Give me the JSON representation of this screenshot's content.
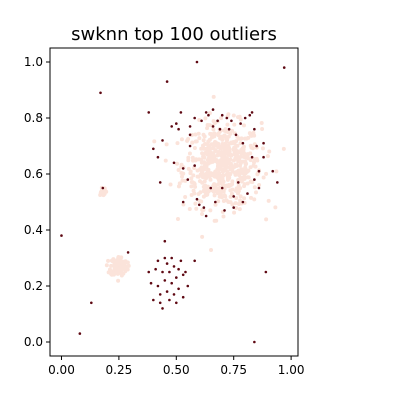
{
  "chart_data": {
    "type": "scatter",
    "title": "swknn top 100 outliers",
    "xlabel": "",
    "ylabel": "",
    "xlim": [
      -0.05,
      1.03
    ],
    "ylim": [
      -0.05,
      1.05
    ],
    "grid": false,
    "legend": "none",
    "x_ticks": [
      0.0,
      0.25,
      0.5,
      0.75,
      1.0
    ],
    "x_tick_labels": [
      "0.00",
      "0.25",
      "0.50",
      "0.75",
      "1.00"
    ],
    "y_ticks": [
      0.0,
      0.2,
      0.4,
      0.6,
      0.8,
      1.0
    ],
    "y_tick_labels": [
      "0.0",
      "0.2",
      "0.4",
      "0.6",
      "0.8",
      "1.0"
    ],
    "colors": {
      "inlier": "#fbe3da",
      "outlier": "#5e0812"
    },
    "inlier_clusters": [
      {
        "center": [
          0.7,
          0.63
        ],
        "spread": [
          0.085,
          0.075
        ],
        "count": 600
      },
      {
        "center": [
          0.25,
          0.27
        ],
        "spread": [
          0.018,
          0.018
        ],
        "count": 120
      },
      {
        "center": [
          0.18,
          0.54
        ],
        "spread": [
          0.008,
          0.008
        ],
        "count": 25
      }
    ],
    "series": [
      {
        "values": [
          [
            0.0,
            0.38
          ],
          [
            0.08,
            0.03
          ],
          [
            0.13,
            0.14
          ],
          [
            0.17,
            0.89
          ],
          [
            0.18,
            0.55
          ],
          [
            0.59,
            1.0
          ],
          [
            0.46,
            0.93
          ],
          [
            0.97,
            0.98
          ],
          [
            0.84,
            0.0
          ],
          [
            0.89,
            0.25
          ],
          [
            0.29,
            0.32
          ],
          [
            0.38,
            0.25
          ],
          [
            0.39,
            0.21
          ],
          [
            0.4,
            0.15
          ],
          [
            0.41,
            0.26
          ],
          [
            0.42,
            0.29
          ],
          [
            0.42,
            0.2
          ],
          [
            0.43,
            0.17
          ],
          [
            0.43,
            0.14
          ],
          [
            0.44,
            0.12
          ],
          [
            0.44,
            0.25
          ],
          [
            0.45,
            0.3
          ],
          [
            0.45,
            0.36
          ],
          [
            0.45,
            0.22
          ],
          [
            0.46,
            0.28
          ],
          [
            0.46,
            0.18
          ],
          [
            0.47,
            0.15
          ],
          [
            0.47,
            0.25
          ],
          [
            0.48,
            0.21
          ],
          [
            0.48,
            0.3
          ],
          [
            0.49,
            0.27
          ],
          [
            0.49,
            0.17
          ],
          [
            0.5,
            0.23
          ],
          [
            0.5,
            0.14
          ],
          [
            0.51,
            0.19
          ],
          [
            0.51,
            0.26
          ],
          [
            0.52,
            0.29
          ],
          [
            0.53,
            0.24
          ],
          [
            0.53,
            0.16
          ],
          [
            0.54,
            0.25
          ],
          [
            0.55,
            0.2
          ],
          [
            0.58,
            0.29
          ],
          [
            0.38,
            0.82
          ],
          [
            0.4,
            0.69
          ],
          [
            0.42,
            0.66
          ],
          [
            0.43,
            0.57
          ],
          [
            0.44,
            0.72
          ],
          [
            0.49,
            0.64
          ],
          [
            0.5,
            0.78
          ],
          [
            0.51,
            0.76
          ],
          [
            0.52,
            0.82
          ],
          [
            0.53,
            0.5
          ],
          [
            0.55,
            0.58
          ],
          [
            0.56,
            0.77
          ],
          [
            0.58,
            0.8
          ],
          [
            0.59,
            0.51
          ],
          [
            0.6,
            0.49
          ],
          [
            0.62,
            0.48
          ],
          [
            0.63,
            0.45
          ],
          [
            0.64,
            0.81
          ],
          [
            0.65,
            0.55
          ],
          [
            0.66,
            0.83
          ],
          [
            0.67,
            0.5
          ],
          [
            0.68,
            0.79
          ],
          [
            0.69,
            0.76
          ],
          [
            0.7,
            0.81
          ],
          [
            0.71,
            0.47
          ],
          [
            0.72,
            0.8
          ],
          [
            0.73,
            0.76
          ],
          [
            0.74,
            0.79
          ],
          [
            0.75,
            0.52
          ],
          [
            0.76,
            0.74
          ],
          [
            0.77,
            0.57
          ],
          [
            0.78,
            0.78
          ],
          [
            0.79,
            0.5
          ],
          [
            0.8,
            0.8
          ],
          [
            0.81,
            0.53
          ],
          [
            0.82,
            0.81
          ],
          [
            0.83,
            0.82
          ],
          [
            0.84,
            0.58
          ],
          [
            0.84,
            0.76
          ],
          [
            0.85,
            0.7
          ],
          [
            0.86,
            0.61
          ],
          [
            0.86,
            0.55
          ],
          [
            0.88,
            0.71
          ],
          [
            0.92,
            0.61
          ],
          [
            0.94,
            0.57
          ],
          [
            0.56,
            0.7
          ],
          [
            0.58,
            0.63
          ],
          [
            0.83,
            0.66
          ],
          [
            0.56,
            0.74
          ],
          [
            0.48,
            0.77
          ],
          [
            0.75,
            0.48
          ],
          [
            0.61,
            0.79
          ],
          [
            0.79,
            0.71
          ],
          [
            0.53,
            0.62
          ],
          [
            0.88,
            0.66
          ],
          [
            0.63,
            0.82
          ],
          [
            0.7,
            0.55
          ],
          [
            0.66,
            0.77
          ]
        ]
      }
    ]
  }
}
